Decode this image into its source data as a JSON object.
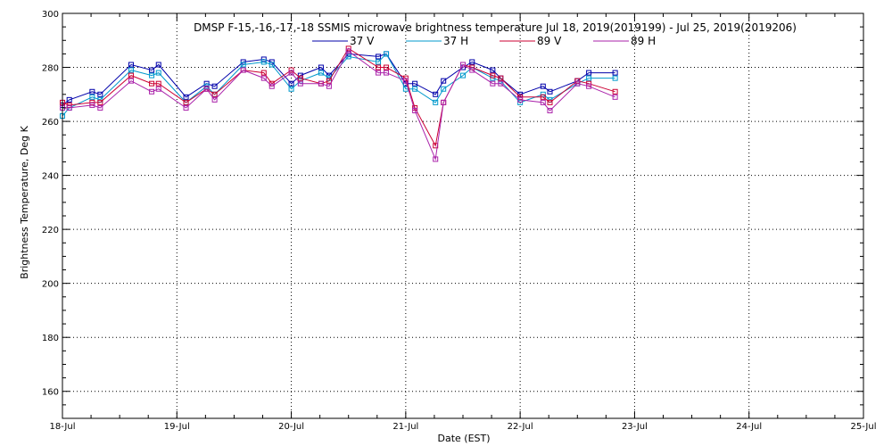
{
  "chart_data": {
    "type": "line",
    "title": "DMSP F-15,-16,-17,-18 SSMIS microwave brightness temperature Jul 18, 2019(2019199) - Jul 25, 2019(2019206)",
    "xlabel": "Date (EST)",
    "ylabel": "Brightness Temperature, Deg K",
    "xlim": [
      0,
      7
    ],
    "ylim": [
      150,
      300
    ],
    "x_ticks": [
      {
        "value": 0,
        "label": "18-Jul"
      },
      {
        "value": 1,
        "label": "19-Jul"
      },
      {
        "value": 2,
        "label": "20-Jul"
      },
      {
        "value": 3,
        "label": "21-Jul"
      },
      {
        "value": 4,
        "label": "22-Jul"
      },
      {
        "value": 5,
        "label": "23-Jul"
      },
      {
        "value": 6,
        "label": "24-Jul"
      },
      {
        "value": 7,
        "label": "25-Jul"
      }
    ],
    "y_ticks": [
      160,
      180,
      200,
      220,
      240,
      260,
      280,
      300
    ],
    "y_minor_step": 5,
    "x_minor_per_major": 4,
    "grid": true,
    "legend_position": "top-center",
    "series": [
      {
        "name": "37 V",
        "color": "#0000aa",
        "points": [
          [
            0.0,
            266
          ],
          [
            0.06,
            268
          ],
          [
            0.26,
            271
          ],
          [
            0.33,
            270
          ],
          [
            0.6,
            281
          ],
          [
            0.78,
            279
          ],
          [
            0.84,
            281
          ],
          [
            1.08,
            269
          ],
          [
            1.26,
            274
          ],
          [
            1.33,
            273
          ],
          [
            1.58,
            282
          ],
          [
            1.76,
            283
          ],
          [
            1.83,
            282
          ],
          [
            2.0,
            274
          ],
          [
            2.08,
            277
          ],
          [
            2.26,
            280
          ],
          [
            2.33,
            277
          ],
          [
            2.5,
            285
          ],
          [
            2.76,
            284
          ],
          [
            2.83,
            285
          ],
          [
            3.0,
            274
          ],
          [
            3.08,
            274
          ],
          [
            3.26,
            270
          ],
          [
            3.33,
            275
          ],
          [
            3.5,
            280
          ],
          [
            3.58,
            282
          ],
          [
            3.76,
            279
          ],
          [
            3.83,
            276
          ],
          [
            4.0,
            270
          ],
          [
            4.2,
            273
          ],
          [
            4.26,
            271
          ],
          [
            4.5,
            275
          ],
          [
            4.6,
            278
          ],
          [
            4.83,
            278
          ]
        ]
      },
      {
        "name": "37 H",
        "color": "#0099cc",
        "points": [
          [
            0.0,
            262
          ],
          [
            0.06,
            265
          ],
          [
            0.26,
            269
          ],
          [
            0.33,
            268
          ],
          [
            0.6,
            279
          ],
          [
            0.78,
            277
          ],
          [
            0.84,
            278
          ],
          [
            1.08,
            267
          ],
          [
            1.26,
            273
          ],
          [
            1.33,
            270
          ],
          [
            1.58,
            281
          ],
          [
            1.76,
            282
          ],
          [
            1.83,
            281
          ],
          [
            2.0,
            272
          ],
          [
            2.08,
            275
          ],
          [
            2.26,
            278
          ],
          [
            2.33,
            276
          ],
          [
            2.5,
            284
          ],
          [
            2.76,
            282
          ],
          [
            2.83,
            285
          ],
          [
            3.0,
            272
          ],
          [
            3.08,
            272
          ],
          [
            3.26,
            267
          ],
          [
            3.33,
            272
          ],
          [
            3.5,
            277
          ],
          [
            3.58,
            280
          ],
          [
            3.76,
            276
          ],
          [
            3.83,
            275
          ],
          [
            4.0,
            267
          ],
          [
            4.2,
            270
          ],
          [
            4.26,
            268
          ],
          [
            4.5,
            274
          ],
          [
            4.6,
            276
          ],
          [
            4.83,
            276
          ]
        ]
      },
      {
        "name": "89 V",
        "color": "#cc0033",
        "points": [
          [
            0.0,
            267
          ],
          [
            0.06,
            266
          ],
          [
            0.26,
            267
          ],
          [
            0.33,
            267
          ],
          [
            0.6,
            277
          ],
          [
            0.78,
            274
          ],
          [
            0.84,
            274
          ],
          [
            1.08,
            267
          ],
          [
            1.26,
            272
          ],
          [
            1.33,
            270
          ],
          [
            1.58,
            279
          ],
          [
            1.76,
            278
          ],
          [
            1.83,
            274
          ],
          [
            2.0,
            279
          ],
          [
            2.08,
            276
          ],
          [
            2.26,
            274
          ],
          [
            2.33,
            275
          ],
          [
            2.5,
            287
          ],
          [
            2.76,
            280
          ],
          [
            2.83,
            280
          ],
          [
            3.0,
            276
          ],
          [
            3.08,
            265
          ],
          [
            3.26,
            251
          ],
          [
            3.33,
            267
          ],
          [
            3.5,
            281
          ],
          [
            3.58,
            280
          ],
          [
            3.76,
            277
          ],
          [
            3.83,
            276
          ],
          [
            4.0,
            269
          ],
          [
            4.2,
            269
          ],
          [
            4.26,
            267
          ],
          [
            4.5,
            275
          ],
          [
            4.6,
            274
          ],
          [
            4.83,
            271
          ]
        ]
      },
      {
        "name": "89 H",
        "color": "#aa22aa",
        "points": [
          [
            0.0,
            265
          ],
          [
            0.06,
            265
          ],
          [
            0.26,
            266
          ],
          [
            0.33,
            265
          ],
          [
            0.6,
            275
          ],
          [
            0.78,
            271
          ],
          [
            0.84,
            272
          ],
          [
            1.08,
            265
          ],
          [
            1.26,
            272
          ],
          [
            1.33,
            268
          ],
          [
            1.58,
            279
          ],
          [
            1.76,
            276
          ],
          [
            1.83,
            273
          ],
          [
            2.0,
            278
          ],
          [
            2.08,
            274
          ],
          [
            2.26,
            274
          ],
          [
            2.33,
            273
          ],
          [
            2.5,
            286
          ],
          [
            2.76,
            278
          ],
          [
            2.83,
            278
          ],
          [
            3.0,
            275
          ],
          [
            3.08,
            264
          ],
          [
            3.26,
            246
          ],
          [
            3.33,
            267
          ],
          [
            3.5,
            281
          ],
          [
            3.58,
            279
          ],
          [
            3.76,
            274
          ],
          [
            3.83,
            274
          ],
          [
            4.0,
            268
          ],
          [
            4.2,
            267
          ],
          [
            4.26,
            264
          ],
          [
            4.5,
            274
          ],
          [
            4.6,
            273
          ],
          [
            4.83,
            269
          ]
        ]
      }
    ]
  }
}
